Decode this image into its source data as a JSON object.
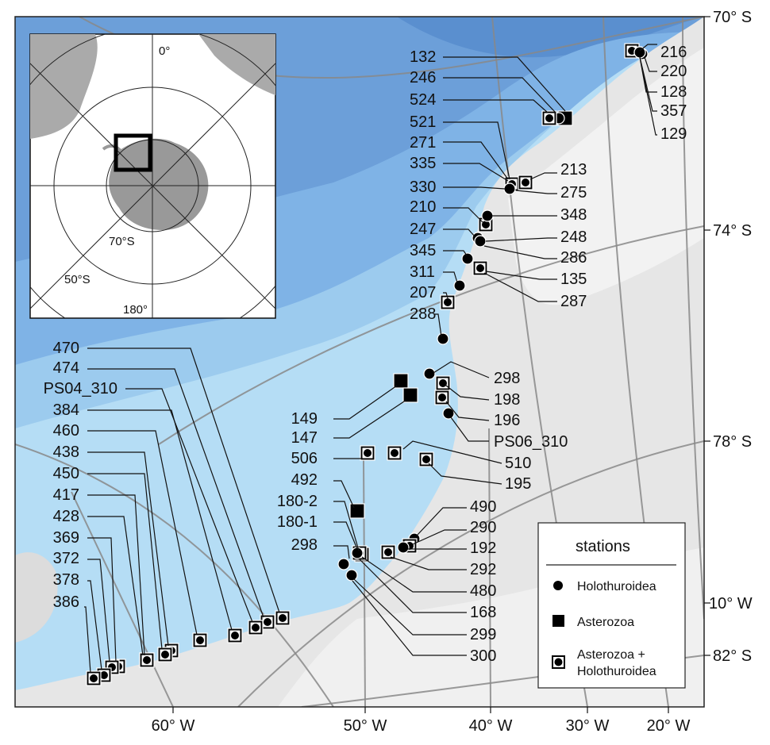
{
  "map": {
    "lat_labels": [
      "70° S",
      "74° S",
      "78° S",
      "82° S"
    ],
    "lon_labels_bottom": [
      "60° W",
      "50° W",
      "40° W",
      "30° W",
      "20° W"
    ],
    "lon_label_right": "10° W"
  },
  "inset": {
    "lon_label_top": "0°",
    "lat_label_70": "70°S",
    "lat_label_50": "50°S",
    "lon_label_bottom": "180°"
  },
  "legend": {
    "title": "stations",
    "holothuroidea": "Holothuroidea",
    "asterozoa": "Asterozoa",
    "both_line1": "Asterozoa +",
    "both_line2": "Holothuroidea"
  },
  "colors": {
    "deep_sea": "#5a8fcf",
    "mid_sea": "#7fb3e6",
    "shelf": "#b5ddf5",
    "land": "#e8e8e8",
    "leader": "#111111"
  },
  "stations": [
    {
      "id": "216",
      "kind": "both"
    },
    {
      "id": "220",
      "kind": "holo"
    },
    {
      "id": "128",
      "kind": "holo"
    },
    {
      "id": "357",
      "kind": "holo"
    },
    {
      "id": "129",
      "kind": "holo"
    },
    {
      "id": "132",
      "kind": "aster"
    },
    {
      "id": "246",
      "kind": "holo"
    },
    {
      "id": "524",
      "kind": "both"
    },
    {
      "id": "521",
      "kind": "both"
    },
    {
      "id": "271",
      "kind": "both"
    },
    {
      "id": "335",
      "kind": "both"
    },
    {
      "id": "330",
      "kind": "holo"
    },
    {
      "id": "213",
      "kind": "both"
    },
    {
      "id": "275",
      "kind": "holo"
    },
    {
      "id": "210",
      "kind": "both"
    },
    {
      "id": "348",
      "kind": "holo"
    },
    {
      "id": "247",
      "kind": "holo"
    },
    {
      "id": "248",
      "kind": "holo"
    },
    {
      "id": "345",
      "kind": "holo"
    },
    {
      "id": "286",
      "kind": "holo"
    },
    {
      "id": "135",
      "kind": "both"
    },
    {
      "id": "311",
      "kind": "holo"
    },
    {
      "id": "287",
      "kind": "both"
    },
    {
      "id": "207",
      "kind": "both"
    },
    {
      "id": "288",
      "kind": "holo"
    },
    {
      "id": "298",
      "kind": "holo"
    },
    {
      "id": "198",
      "kind": "both"
    },
    {
      "id": "149",
      "kind": "aster"
    },
    {
      "id": "196",
      "kind": "both"
    },
    {
      "id": "147",
      "kind": "aster"
    },
    {
      "id": "PS06_310",
      "kind": "holo"
    },
    {
      "id": "506",
      "kind": "both"
    },
    {
      "id": "510",
      "kind": "both"
    },
    {
      "id": "195",
      "kind": "both"
    },
    {
      "id": "492",
      "kind": "aster"
    },
    {
      "id": "490",
      "kind": "holo"
    },
    {
      "id": "290",
      "kind": "both"
    },
    {
      "id": "180-2",
      "kind": "both"
    },
    {
      "id": "192",
      "kind": "holo"
    },
    {
      "id": "180-1",
      "kind": "both"
    },
    {
      "id": "292",
      "kind": "both"
    },
    {
      "id": "298",
      "kind": "holo"
    },
    {
      "id": "480",
      "kind": "holo"
    },
    {
      "id": "168",
      "kind": "holo"
    },
    {
      "id": "299",
      "kind": "holo"
    },
    {
      "id": "300",
      "kind": "holo"
    },
    {
      "id": "470",
      "kind": "both"
    },
    {
      "id": "474",
      "kind": "both"
    },
    {
      "id": "PS04_310",
      "kind": "both"
    },
    {
      "id": "384",
      "kind": "both"
    },
    {
      "id": "460",
      "kind": "both"
    },
    {
      "id": "438",
      "kind": "both"
    },
    {
      "id": "450",
      "kind": "both"
    },
    {
      "id": "417",
      "kind": "both"
    },
    {
      "id": "428",
      "kind": "both"
    },
    {
      "id": "369",
      "kind": "both"
    },
    {
      "id": "372",
      "kind": "both"
    },
    {
      "id": "378",
      "kind": "both"
    },
    {
      "id": "386",
      "kind": "both"
    }
  ]
}
